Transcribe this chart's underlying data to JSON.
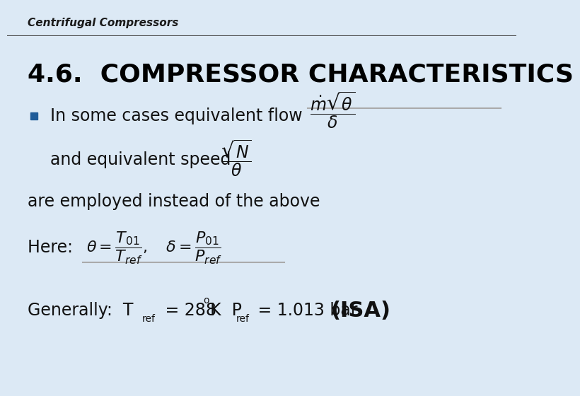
{
  "header_text": "Centrifugal Compressors",
  "header_bg": "#b8cce4",
  "header_line_color": "#4a4a4a",
  "slide_bg": "#dce9f5",
  "title": "4.6.  COMPRESSOR CHARACTERISTICS",
  "title_fontsize": 26,
  "title_color": "#000000",
  "bullet_color": "#1f5c99",
  "body_fontsize": 17,
  "line1": "In some cases equivalent flow",
  "line2": "and equivalent speed",
  "line3": "are employed instead of the above",
  "separator_color": "#aaaaaa",
  "separator_lw": 1.5,
  "isa_fontsize": 22,
  "header_fontsize": 11,
  "here_label": "Here: ",
  "generally_label": "Generally:  T",
  "generally_mid": " = 288",
  "generally_k": "K  P",
  "generally_end": " = 1.013 bar ",
  "generally_isa": "(ISA)",
  "ref_label": "ref",
  "degree": "o"
}
